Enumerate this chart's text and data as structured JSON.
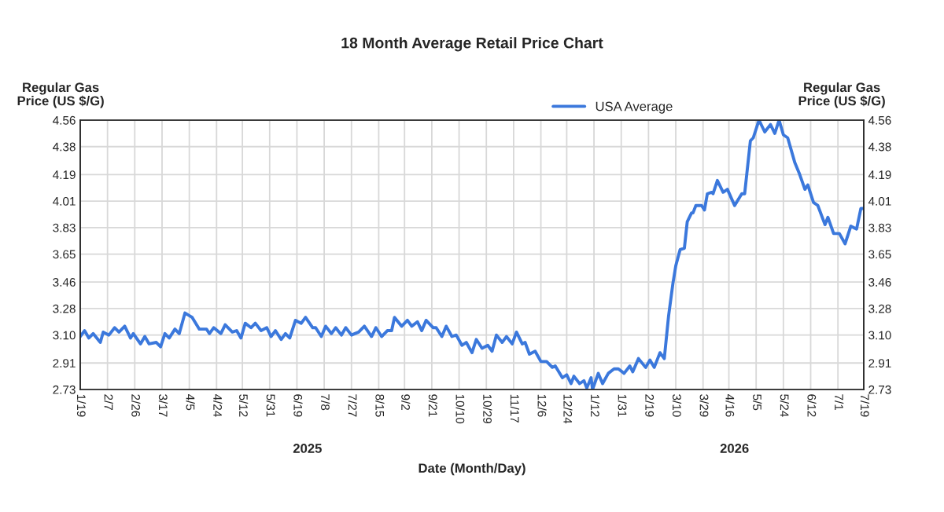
{
  "chart_data": {
    "type": "line",
    "title": "18 Month Average Retail Price Chart",
    "xlabel": "Date (Month/Day)",
    "ylabel": "Regular Gas\nPrice (US $/G)",
    "y2label": "Regular Gas\nPrice (US $/G)",
    "annotations": [
      "2025",
      "2026"
    ],
    "x": [
      "2025-01-19",
      "2025-01-22",
      "2025-01-25",
      "2025-01-28",
      "2025-02-02",
      "2025-02-04",
      "2025-02-08",
      "2025-02-12",
      "2025-02-15",
      "2025-02-19",
      "2025-02-23",
      "2025-02-25",
      "2025-03-02",
      "2025-03-05",
      "2025-03-08",
      "2025-03-13",
      "2025-03-16",
      "2025-03-19",
      "2025-03-22",
      "2025-03-26",
      "2025-03-29",
      "2025-04-02",
      "2025-04-07",
      "2025-04-12",
      "2025-04-17",
      "2025-04-19",
      "2025-04-22",
      "2025-04-27",
      "2025-04-30",
      "2025-05-05",
      "2025-05-08",
      "2025-05-11",
      "2025-05-14",
      "2025-05-18",
      "2025-05-21",
      "2025-05-25",
      "2025-05-29",
      "2025-06-01",
      "2025-06-04",
      "2025-06-08",
      "2025-06-11",
      "2025-06-14",
      "2025-06-18",
      "2025-06-22",
      "2025-06-25",
      "2025-06-30",
      "2025-07-02",
      "2025-07-06",
      "2025-07-09",
      "2025-07-13",
      "2025-07-16",
      "2025-07-20",
      "2025-07-23",
      "2025-07-27",
      "2025-08-01",
      "2025-08-05",
      "2025-08-10",
      "2025-08-13",
      "2025-08-17",
      "2025-08-21",
      "2025-08-24",
      "2025-08-26",
      "2025-08-31",
      "2025-09-04",
      "2025-09-07",
      "2025-09-11",
      "2025-09-14",
      "2025-09-17",
      "2025-09-22",
      "2025-09-24",
      "2025-09-28",
      "2025-10-01",
      "2025-10-05",
      "2025-10-08",
      "2025-10-12",
      "2025-10-15",
      "2025-10-19",
      "2025-10-22",
      "2025-10-26",
      "2025-10-30",
      "2025-11-02",
      "2025-11-05",
      "2025-11-09",
      "2025-11-12",
      "2025-11-16",
      "2025-11-19",
      "2025-11-23",
      "2025-11-25",
      "2025-11-28",
      "2025-12-02",
      "2025-12-06",
      "2025-12-10",
      "2025-12-14",
      "2025-12-16",
      "2025-12-21",
      "2025-12-24",
      "2025-12-27",
      "2025-12-29",
      "2026-01-02",
      "2026-01-05",
      "2026-01-07",
      "2026-01-10",
      "2026-01-11",
      "2026-01-15",
      "2026-01-18",
      "2026-01-22",
      "2026-01-26",
      "2026-01-29",
      "2026-02-02",
      "2026-02-06",
      "2026-02-08",
      "2026-02-12",
      "2026-02-17",
      "2026-02-20",
      "2026-02-23",
      "2026-02-27",
      "2026-03-02",
      "2026-03-05",
      "2026-03-08",
      "2026-03-10",
      "2026-03-13",
      "2026-03-16",
      "2026-03-18",
      "2026-03-21",
      "2026-03-22",
      "2026-03-24",
      "2026-03-28",
      "2026-03-30",
      "2026-04-01",
      "2026-04-04",
      "2026-04-05",
      "2026-04-08",
      "2026-04-12",
      "2026-04-15",
      "2026-04-20",
      "2026-04-25",
      "2026-04-27",
      "2026-05-01",
      "2026-05-03",
      "2026-05-07",
      "2026-05-11",
      "2026-05-15",
      "2026-05-18",
      "2026-05-21",
      "2026-05-24",
      "2026-05-27",
      "2026-06-01",
      "2026-06-04",
      "2026-06-08",
      "2026-06-10",
      "2026-06-14",
      "2026-06-17",
      "2026-06-22",
      "2026-06-24",
      "2026-06-28",
      "2026-07-02",
      "2026-07-06",
      "2026-07-10",
      "2026-07-14",
      "2026-07-17",
      "2026-07-19"
    ],
    "series": [
      {
        "name": "USA Average",
        "color": "#3b78dc",
        "values": [
          3.09,
          3.13,
          3.08,
          3.11,
          3.05,
          3.12,
          3.1,
          3.15,
          3.12,
          3.16,
          3.08,
          3.11,
          3.04,
          3.09,
          3.04,
          3.05,
          3.02,
          3.11,
          3.08,
          3.14,
          3.11,
          3.25,
          3.22,
          3.14,
          3.14,
          3.11,
          3.15,
          3.11,
          3.17,
          3.12,
          3.13,
          3.08,
          3.18,
          3.15,
          3.18,
          3.13,
          3.15,
          3.09,
          3.13,
          3.07,
          3.11,
          3.08,
          3.2,
          3.18,
          3.22,
          3.15,
          3.15,
          3.09,
          3.16,
          3.11,
          3.15,
          3.1,
          3.15,
          3.1,
          3.12,
          3.16,
          3.09,
          3.15,
          3.09,
          3.13,
          3.13,
          3.22,
          3.16,
          3.2,
          3.16,
          3.19,
          3.13,
          3.2,
          3.15,
          3.15,
          3.09,
          3.16,
          3.09,
          3.1,
          3.03,
          3.05,
          2.98,
          3.07,
          3.01,
          3.03,
          2.99,
          3.1,
          3.05,
          3.09,
          3.04,
          3.12,
          3.04,
          3.05,
          2.97,
          2.99,
          2.92,
          2.92,
          2.88,
          2.89,
          2.81,
          2.83,
          2.77,
          2.82,
          2.77,
          2.79,
          2.74,
          2.81,
          2.73,
          2.84,
          2.77,
          2.84,
          2.87,
          2.87,
          2.84,
          2.89,
          2.85,
          2.94,
          2.88,
          2.93,
          2.88,
          2.98,
          2.94,
          3.23,
          3.45,
          3.57,
          3.68,
          3.69,
          3.87,
          3.93,
          3.93,
          3.98,
          3.98,
          3.95,
          4.06,
          4.07,
          4.06,
          4.15,
          4.07,
          4.09,
          3.98,
          4.06,
          4.06,
          4.42,
          4.44,
          4.56,
          4.48,
          4.53,
          4.47,
          4.56,
          4.46,
          4.44,
          4.27,
          4.2,
          4.09,
          4.12,
          4.0,
          3.98,
          3.85,
          3.9,
          3.79,
          3.79,
          3.72,
          3.84,
          3.82,
          3.96,
          3.96
        ]
      }
    ],
    "xlim": [
      "2025-01-19",
      "2026-07-19"
    ],
    "xticks": [
      {
        "value": "2025-01-19",
        "label": "1/19"
      },
      {
        "value": "2025-02-07",
        "label": "2/7"
      },
      {
        "value": "2025-02-26",
        "label": "2/26"
      },
      {
        "value": "2025-03-17",
        "label": "3/17"
      },
      {
        "value": "2025-04-05",
        "label": "4/5"
      },
      {
        "value": "2025-04-24",
        "label": "4/24"
      },
      {
        "value": "2025-05-12",
        "label": "5/12"
      },
      {
        "value": "2025-05-31",
        "label": "5/31"
      },
      {
        "value": "2025-06-19",
        "label": "6/19"
      },
      {
        "value": "2025-07-08",
        "label": "7/8"
      },
      {
        "value": "2025-07-27",
        "label": "7/27"
      },
      {
        "value": "2025-08-15",
        "label": "8/15"
      },
      {
        "value": "2025-09-02",
        "label": "9/2"
      },
      {
        "value": "2025-09-21",
        "label": "9/21"
      },
      {
        "value": "2025-10-10",
        "label": "10/10"
      },
      {
        "value": "2025-10-29",
        "label": "10/29"
      },
      {
        "value": "2025-11-17",
        "label": "11/17"
      },
      {
        "value": "2025-12-06",
        "label": "12/6"
      },
      {
        "value": "2025-12-24",
        "label": "12/24"
      },
      {
        "value": "2026-01-12",
        "label": "1/12"
      },
      {
        "value": "2026-01-31",
        "label": "1/31"
      },
      {
        "value": "2026-02-19",
        "label": "2/19"
      },
      {
        "value": "2026-03-10",
        "label": "3/10"
      },
      {
        "value": "2026-03-29",
        "label": "3/29"
      },
      {
        "value": "2026-04-16",
        "label": "4/16"
      },
      {
        "value": "2026-05-05",
        "label": "5/5"
      },
      {
        "value": "2026-05-24",
        "label": "5/24"
      },
      {
        "value": "2026-06-12",
        "label": "6/12"
      },
      {
        "value": "2026-07-01",
        "label": "7/1"
      },
      {
        "value": "2026-07-19",
        "label": "7/19"
      }
    ],
    "ylim": [
      2.73,
      4.56
    ],
    "yticks": [
      2.73,
      2.91,
      {
        "value": 3.1,
        "label": "3.10"
      },
      3.28,
      3.46,
      3.65,
      3.83,
      4.01,
      4.19,
      4.38,
      4.56
    ],
    "y2lim": [
      2.73,
      4.56
    ],
    "y2ticks": [
      2.73,
      2.91,
      {
        "value": 3.1,
        "label": "3.10"
      },
      3.28,
      3.46,
      3.65,
      3.83,
      4.01,
      4.19,
      4.38,
      4.56
    ],
    "grid": true,
    "legend": "top",
    "marker": "none",
    "line_style": "solid"
  }
}
